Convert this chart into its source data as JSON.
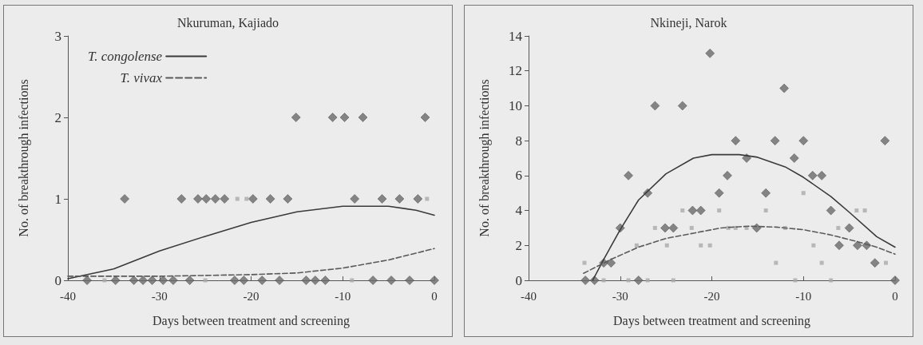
{
  "chart_data": [
    {
      "type": "scatter",
      "title": "Nkuruman, Kajiado",
      "xlabel": "Days between treatment and screening",
      "ylabel": "No. of breakthrough infections",
      "xlim": [
        -40,
        0
      ],
      "xticks": [
        -40,
        -30,
        -20,
        -10,
        0
      ],
      "ylim": [
        0,
        3
      ],
      "yticks": [
        0,
        1,
        2,
        3
      ],
      "grid": false,
      "legend": "top left",
      "series": [
        {
          "marker": "diamond",
          "color": "#6a6a6a",
          "x": [
            -33.8,
            -27.6,
            -25.8,
            -24.9,
            -23.9,
            -22.9,
            -19.8,
            -17.9,
            -16,
            -8.7,
            -5.7,
            -3.8,
            -1.8,
            -15.1,
            -11.1,
            -9.8,
            -7.8,
            -1,
            -37.9,
            -34.8,
            -32.8,
            -31.8,
            -30.8,
            -29.6,
            -28.5,
            -26.7,
            -21.8,
            -20.8,
            -18.8,
            -16.9,
            -14,
            -13,
            -11.9,
            -6.7,
            -4.7,
            -2.7,
            0
          ],
          "values": [
            1,
            1,
            1,
            1,
            1,
            1,
            1,
            1,
            1,
            1,
            1,
            1,
            1,
            2,
            2,
            2,
            2,
            2,
            0,
            0,
            0,
            0,
            0,
            0,
            0,
            0,
            0,
            0,
            0,
            0,
            0,
            0,
            0,
            0,
            0,
            0,
            0
          ]
        },
        {
          "marker": "square",
          "color": "#aaaaaa",
          "x": [
            -21.5,
            -20.5,
            -0.8,
            -36,
            -25,
            -9
          ],
          "values": [
            1,
            1,
            1,
            0,
            0,
            0
          ]
        },
        {
          "type": "line",
          "name": "T. congolense",
          "marker": "none",
          "line_style": "solid",
          "color": "#3a3a3a",
          "x": [
            -40,
            -35,
            -30,
            -25,
            -20,
            -15,
            -10,
            -5,
            -2,
            0
          ],
          "values": [
            0.02,
            0.14,
            0.36,
            0.54,
            0.71,
            0.84,
            0.91,
            0.91,
            0.86,
            0.8
          ]
        },
        {
          "type": "line",
          "name": "T. vivax",
          "marker": "none",
          "line_style": "dashed",
          "color": "#5a5a5a",
          "x": [
            -40,
            -30,
            -20,
            -15,
            -10,
            -5,
            0
          ],
          "values": [
            0.05,
            0.05,
            0.07,
            0.09,
            0.15,
            0.25,
            0.39
          ]
        }
      ]
    },
    {
      "type": "scatter",
      "title": "Nkineji, Narok",
      "xlabel": "Days between treatment and screening",
      "ylabel": "No. of breakthrough infections",
      "xlim": [
        -40,
        0
      ],
      "xticks": [
        -40,
        -30,
        -20,
        -10,
        0
      ],
      "ylim": [
        0,
        14
      ],
      "yticks": [
        0,
        2,
        4,
        6,
        8,
        10,
        12,
        14
      ],
      "grid": false,
      "legend": false,
      "series": [
        {
          "marker": "diamond",
          "color": "#6a6a6a",
          "x": [
            -33.8,
            -32.8,
            -31.8,
            -31,
            -30,
            -29.1,
            -28,
            -27,
            -26.2,
            -25.1,
            -24.2,
            -23.2,
            -22.1,
            -21.2,
            -20.2,
            -19.2,
            -18.3,
            -17.4,
            -16.2,
            -15.1,
            -14.1,
            -13.1,
            -12.1,
            -11,
            -10,
            -9,
            -8,
            -7,
            -6.1,
            -5,
            -4.1,
            -3.1,
            -2.2,
            -1.1,
            0
          ],
          "values": [
            0,
            0,
            1,
            1,
            3,
            6,
            0,
            5,
            10,
            3,
            3,
            10,
            4,
            4,
            13,
            5,
            6,
            8,
            7,
            3,
            5,
            8,
            11,
            7,
            8,
            6,
            6,
            4,
            2,
            3,
            2,
            2,
            1,
            8,
            0
          ]
        },
        {
          "marker": "square",
          "color": "#aaaaaa",
          "x": [
            -33.9,
            -31.8,
            -29.1,
            -28.2,
            -27,
            -26.2,
            -24.9,
            -24.2,
            -23.2,
            -22.2,
            -21.2,
            -20.2,
            -19.2,
            -18.2,
            -17.4,
            -16.2,
            -14.1,
            -13,
            -12,
            -10.9,
            -10,
            -8.9,
            -8,
            -7,
            -6.2,
            -4.2,
            -3.3,
            -1
          ],
          "values": [
            1,
            0,
            0,
            2,
            0,
            3,
            2,
            0,
            4,
            3,
            2,
            2,
            4,
            3,
            3,
            3,
            4,
            1,
            3,
            0,
            5,
            2,
            1,
            0,
            3,
            4,
            4,
            1
          ]
        },
        {
          "type": "line",
          "marker": "none",
          "line_style": "solid",
          "color": "#3a3a3a",
          "x": [
            -33,
            -31.8,
            -30,
            -28,
            -25,
            -22,
            -20,
            -17,
            -15,
            -12,
            -10,
            -7,
            -5,
            -2,
            0
          ],
          "values": [
            0,
            1.2,
            2.9,
            4.6,
            6.1,
            7,
            7.2,
            7.2,
            7.05,
            6.5,
            5.9,
            4.8,
            3.9,
            2.5,
            1.9
          ]
        },
        {
          "type": "line",
          "marker": "none",
          "line_style": "dashed",
          "color": "#5a5a5a",
          "x": [
            -34,
            -31,
            -28,
            -25,
            -22,
            -19,
            -16,
            -13,
            -10,
            -7,
            -4,
            -2,
            0
          ],
          "values": [
            0.4,
            1.2,
            1.9,
            2.4,
            2.7,
            3,
            3.1,
            3.05,
            2.9,
            2.6,
            2.2,
            1.9,
            1.5
          ]
        }
      ]
    }
  ]
}
